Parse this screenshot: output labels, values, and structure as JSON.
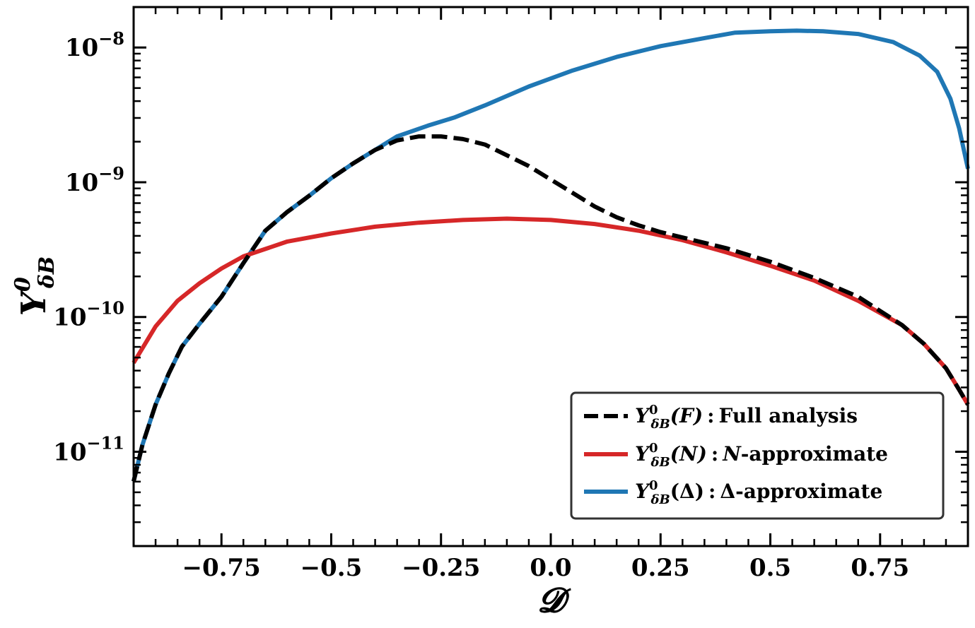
{
  "chart_data": {
    "type": "line",
    "title": "",
    "xlabel": "𝓓",
    "ylabel": {
      "base": "Y",
      "sup": "0",
      "sub": "δB"
    },
    "xlim": [
      -0.95,
      0.95
    ],
    "ylim_log10": [
      -11.7,
      -7.7
    ],
    "yscale": "log",
    "grid": false,
    "xticks": [
      {
        "value": -0.75,
        "label": "−0.75"
      },
      {
        "value": -0.5,
        "label": "−0.5"
      },
      {
        "value": -0.25,
        "label": "−0.25"
      },
      {
        "value": 0.0,
        "label": "0.0"
      },
      {
        "value": 0.25,
        "label": "0.25"
      },
      {
        "value": 0.5,
        "label": "0.5"
      },
      {
        "value": 0.75,
        "label": "0.75"
      }
    ],
    "yticks": [
      {
        "log10": -8,
        "base": "10",
        "exp": "−8"
      },
      {
        "log10": -9,
        "base": "10",
        "exp": "−9"
      },
      {
        "log10": -10,
        "base": "10",
        "exp": "−10"
      },
      {
        "log10": -11,
        "base": "10",
        "exp": "−11"
      }
    ],
    "legend_position": "bottom-right",
    "series": [
      {
        "name": "Delta-approximate",
        "legend": {
          "sym": "Y",
          "sup": "0",
          "sub": "δB",
          "arg": "(Δ)",
          "colon": ":",
          "text": "Δ-approximate"
        },
        "color": "#1f77b4",
        "style": "solid",
        "x": [
          -0.95,
          -0.93,
          -0.9,
          -0.87,
          -0.84,
          -0.8,
          -0.75,
          -0.7,
          -0.65,
          -0.6,
          -0.55,
          -0.5,
          -0.45,
          -0.4,
          -0.35,
          -0.28,
          -0.22,
          -0.15,
          -0.05,
          0.05,
          0.15,
          0.25,
          0.35,
          0.42,
          0.5,
          0.56,
          0.62,
          0.7,
          0.78,
          0.84,
          0.88,
          0.91,
          0.93,
          0.95
        ],
        "y_log10": [
          -11.22,
          -10.95,
          -10.65,
          -10.42,
          -10.22,
          -10.05,
          -9.85,
          -9.6,
          -9.36,
          -9.22,
          -9.1,
          -8.97,
          -8.86,
          -8.76,
          -8.66,
          -8.58,
          -8.52,
          -8.43,
          -8.29,
          -8.17,
          -8.07,
          -7.99,
          -7.93,
          -7.89,
          -7.88,
          -7.875,
          -7.88,
          -7.9,
          -7.96,
          -8.06,
          -8.18,
          -8.38,
          -8.6,
          -8.9
        ]
      },
      {
        "name": "N-approximate",
        "legend": {
          "sym": "Y",
          "sup": "0",
          "sub": "δB",
          "arg": "(N)",
          "colon": ":",
          "argtext": "N",
          "text": "-approximate"
        },
        "color": "#d62728",
        "style": "solid",
        "x": [
          -0.95,
          -0.9,
          -0.85,
          -0.8,
          -0.75,
          -0.7,
          -0.6,
          -0.5,
          -0.4,
          -0.3,
          -0.2,
          -0.1,
          0.0,
          0.1,
          0.2,
          0.3,
          0.4,
          0.5,
          0.6,
          0.7,
          0.8,
          0.85,
          0.9,
          0.93,
          0.95
        ],
        "y_log10": [
          -10.34,
          -10.07,
          -9.88,
          -9.75,
          -9.64,
          -9.55,
          -9.44,
          -9.38,
          -9.33,
          -9.3,
          -9.28,
          -9.27,
          -9.28,
          -9.31,
          -9.36,
          -9.43,
          -9.52,
          -9.62,
          -9.73,
          -9.88,
          -10.06,
          -10.2,
          -10.38,
          -10.54,
          -10.65
        ]
      },
      {
        "name": "Full analysis",
        "legend": {
          "sym": "Y",
          "sup": "0",
          "sub": "δB",
          "arg": "(F)",
          "colon": ":",
          "text": "Full analysis"
        },
        "color": "#000000",
        "style": "dashed",
        "x": [
          -0.95,
          -0.93,
          -0.9,
          -0.87,
          -0.84,
          -0.8,
          -0.75,
          -0.7,
          -0.65,
          -0.6,
          -0.55,
          -0.5,
          -0.45,
          -0.4,
          -0.35,
          -0.3,
          -0.25,
          -0.2,
          -0.15,
          -0.1,
          -0.05,
          0.0,
          0.05,
          0.1,
          0.15,
          0.2,
          0.25,
          0.3,
          0.4,
          0.5,
          0.6,
          0.7,
          0.8,
          0.85,
          0.9,
          0.93,
          0.95
        ],
        "y_log10": [
          -11.22,
          -10.95,
          -10.65,
          -10.42,
          -10.22,
          -10.05,
          -9.85,
          -9.6,
          -9.36,
          -9.22,
          -9.1,
          -8.97,
          -8.86,
          -8.76,
          -8.69,
          -8.66,
          -8.66,
          -8.68,
          -8.72,
          -8.8,
          -8.88,
          -8.98,
          -9.08,
          -9.18,
          -9.26,
          -9.32,
          -9.37,
          -9.41,
          -9.49,
          -9.59,
          -9.71,
          -9.85,
          -10.06,
          -10.2,
          -10.38,
          -10.54,
          -10.65
        ]
      }
    ]
  }
}
